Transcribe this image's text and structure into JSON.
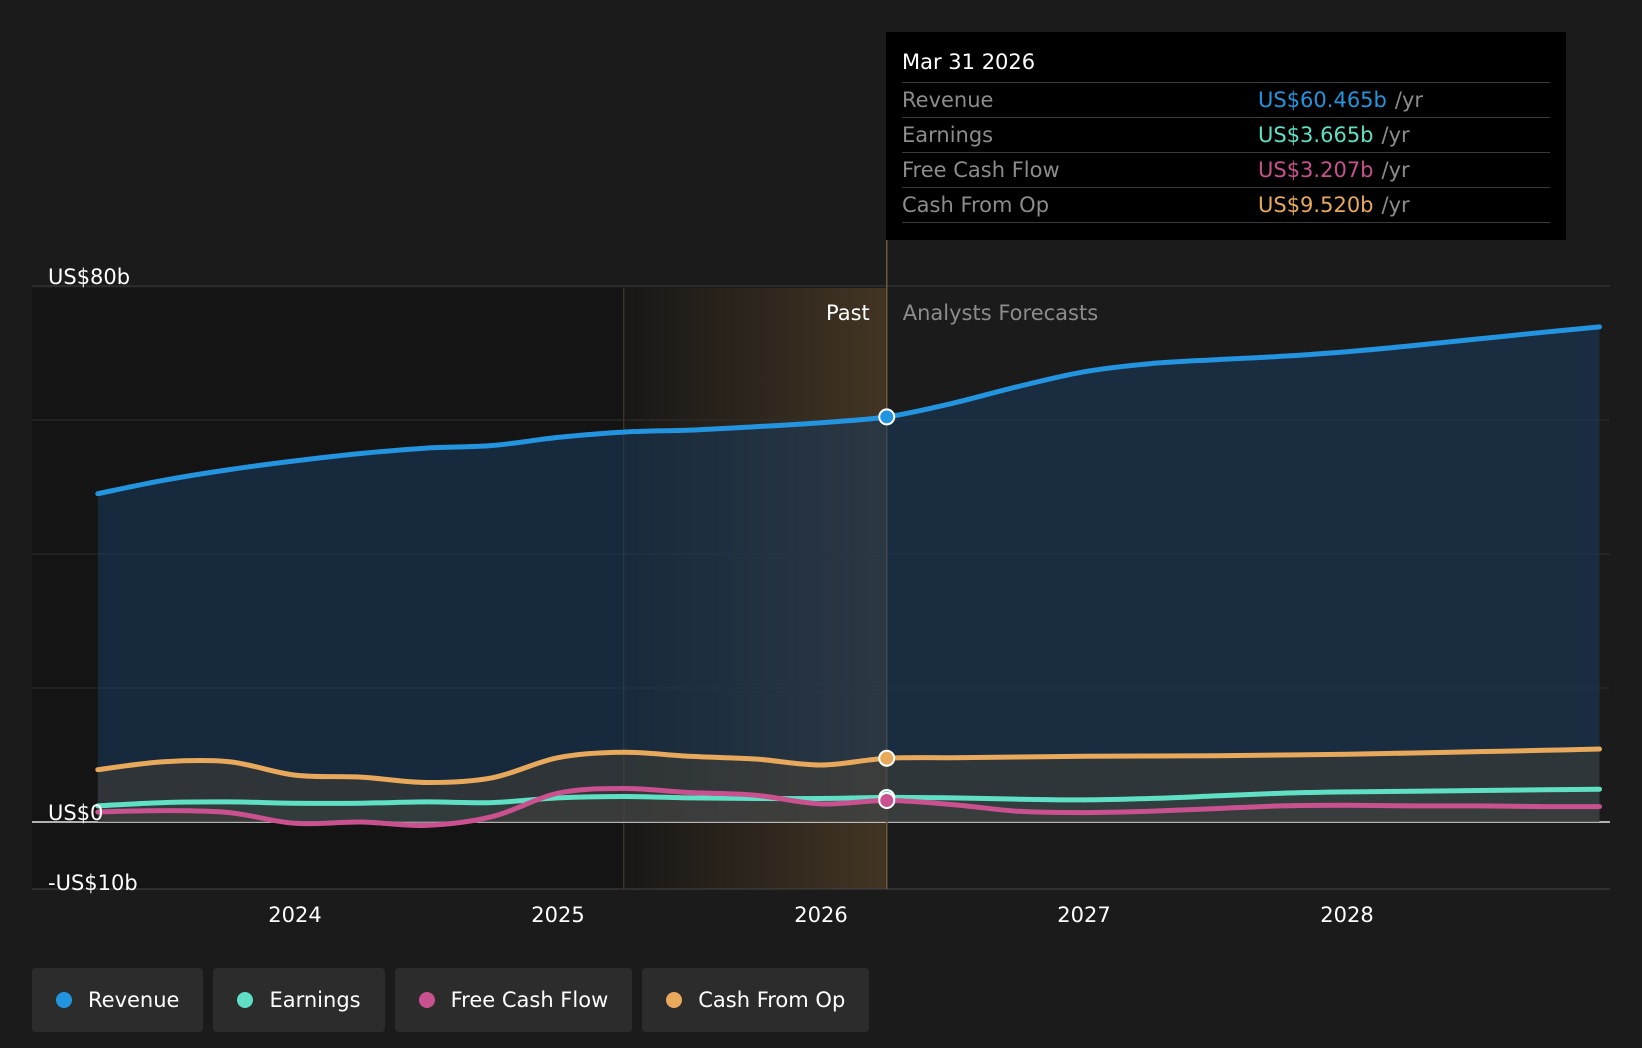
{
  "chart_data": {
    "type": "area",
    "x_range": [
      2023.2,
      2028.96
    ],
    "ylim": [
      -10,
      80
    ],
    "y_ticks": [
      80,
      0,
      -10
    ],
    "y_tick_labels": [
      "US$80b",
      "US$0",
      "-US$10b"
    ],
    "x_ticks": [
      2024,
      2025,
      2026,
      2027,
      2028
    ],
    "x_tick_labels": [
      "2024",
      "2025",
      "2026",
      "2027",
      "2028"
    ],
    "divider_x": 2026.25,
    "forecast_shade_start": 2025.25,
    "past_label": "Past",
    "forecast_label": "Analysts Forecasts",
    "series": [
      {
        "name": "Revenue",
        "color": "#2394df",
        "x": [
          2023.25,
          2023.5,
          2023.75,
          2024.0,
          2024.25,
          2024.5,
          2024.75,
          2025.0,
          2025.25,
          2025.5,
          2025.75,
          2026.0,
          2026.25,
          2026.5,
          2026.75,
          2027.0,
          2027.25,
          2027.5,
          2027.75,
          2028.0,
          2028.25,
          2028.5,
          2028.75,
          2028.96
        ],
        "values": [
          49.0,
          51.0,
          52.6,
          53.9,
          55.0,
          55.8,
          56.2,
          57.4,
          58.2,
          58.5,
          59.0,
          59.6,
          60.465,
          62.5,
          65.0,
          67.2,
          68.4,
          69.0,
          69.5,
          70.2,
          71.1,
          72.1,
          73.1,
          73.9
        ]
      },
      {
        "name": "Earnings",
        "color": "#5fe0c4",
        "x": [
          2023.25,
          2023.5,
          2023.75,
          2024.0,
          2024.25,
          2024.5,
          2024.75,
          2025.0,
          2025.25,
          2025.5,
          2025.75,
          2026.0,
          2026.25,
          2026.5,
          2026.75,
          2027.0,
          2027.25,
          2027.5,
          2027.75,
          2028.0,
          2028.25,
          2028.5,
          2028.75,
          2028.96
        ],
        "values": [
          2.4,
          2.9,
          3.0,
          2.8,
          2.8,
          3.0,
          2.9,
          3.6,
          3.8,
          3.6,
          3.5,
          3.5,
          3.665,
          3.6,
          3.4,
          3.3,
          3.5,
          3.9,
          4.3,
          4.5,
          4.6,
          4.7,
          4.8,
          4.9
        ]
      },
      {
        "name": "Free Cash Flow",
        "color": "#c9518f",
        "x": [
          2023.25,
          2023.5,
          2023.75,
          2024.0,
          2024.25,
          2024.5,
          2024.75,
          2025.0,
          2025.25,
          2025.5,
          2025.75,
          2026.0,
          2026.25,
          2026.5,
          2026.75,
          2027.0,
          2027.25,
          2027.5,
          2027.75,
          2028.0,
          2028.25,
          2028.5,
          2028.75,
          2028.96
        ],
        "values": [
          1.5,
          1.7,
          1.4,
          -0.2,
          0.0,
          -0.5,
          0.8,
          4.3,
          5.0,
          4.4,
          4.0,
          2.7,
          3.207,
          2.6,
          1.6,
          1.4,
          1.6,
          2.0,
          2.4,
          2.5,
          2.4,
          2.4,
          2.3,
          2.3
        ]
      },
      {
        "name": "Cash From Op",
        "color": "#e8a95c",
        "x": [
          2023.25,
          2023.5,
          2023.75,
          2024.0,
          2024.25,
          2024.5,
          2024.75,
          2025.0,
          2025.25,
          2025.5,
          2025.75,
          2026.0,
          2026.25,
          2026.5,
          2026.75,
          2027.0,
          2027.25,
          2027.5,
          2027.75,
          2028.0,
          2028.25,
          2028.5,
          2028.75,
          2028.96
        ],
        "values": [
          7.8,
          9.0,
          9.0,
          7.0,
          6.7,
          5.9,
          6.6,
          9.6,
          10.4,
          9.8,
          9.4,
          8.5,
          9.52,
          9.6,
          9.7,
          9.8,
          9.85,
          9.9,
          10.0,
          10.1,
          10.3,
          10.5,
          10.7,
          10.9
        ]
      }
    ]
  },
  "tooltip": {
    "date": "Mar 31 2026",
    "unit": "/yr",
    "rows": [
      {
        "label": "Revenue",
        "value": "US$60.465b",
        "color": "#2394df"
      },
      {
        "label": "Earnings",
        "value": "US$3.665b",
        "color": "#5fe0c4"
      },
      {
        "label": "Free Cash Flow",
        "value": "US$3.207b",
        "color": "#c9518f"
      },
      {
        "label": "Cash From Op",
        "value": "US$9.520b",
        "color": "#e8a95c"
      }
    ]
  },
  "legend": [
    {
      "label": "Revenue",
      "color": "#2394df"
    },
    {
      "label": "Earnings",
      "color": "#5fe0c4"
    },
    {
      "label": "Free Cash Flow",
      "color": "#c9518f"
    },
    {
      "label": "Cash From Op",
      "color": "#e8a95c"
    }
  ]
}
